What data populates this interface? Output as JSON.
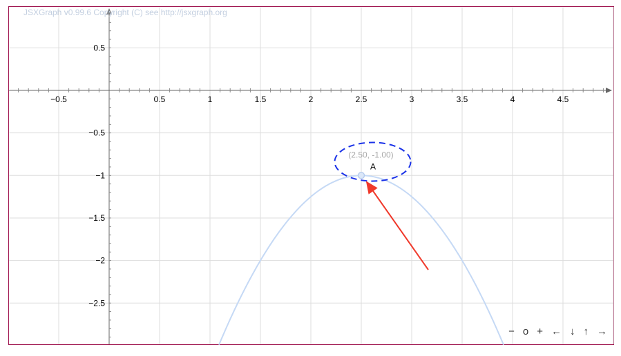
{
  "board": {
    "copyright": "JSXGraph v0.99.6 Copyright (C) see http://jsxgraph.org",
    "border_color": "#a0154f",
    "x_ticks": [
      "−0.5",
      "0.5",
      "1",
      "1.5",
      "2",
      "2.5",
      "3",
      "3.5",
      "4",
      "4.5"
    ],
    "x_tick_values": [
      -0.5,
      0.5,
      1,
      1.5,
      2,
      2.5,
      3,
      3.5,
      4,
      4.5
    ],
    "y_ticks": [
      "0.5",
      "−0.5",
      "−1",
      "−1.5",
      "−2",
      "−2.5"
    ],
    "y_tick_values": [
      0.5,
      -0.5,
      -1,
      -1.5,
      -2,
      -2.5
    ],
    "curve": {
      "function": "y = -(x-2.5)^2 - 1",
      "color": "#c5d9f5"
    },
    "point": {
      "name": "A",
      "label": "(2.50, -1.00)",
      "x": 2.5,
      "y": -1
    },
    "highlight_color": "#1a32e8",
    "arrow_color": "#f0392b"
  },
  "navigation": [
    {
      "name": "zoom-out",
      "label": "−"
    },
    {
      "name": "zoom-reset",
      "label": "o"
    },
    {
      "name": "zoom-in",
      "label": "+"
    },
    {
      "name": "pan-left",
      "label": "←"
    },
    {
      "name": "pan-down",
      "label": "↓"
    },
    {
      "name": "pan-up",
      "label": "↑"
    },
    {
      "name": "pan-right",
      "label": "→"
    }
  ]
}
